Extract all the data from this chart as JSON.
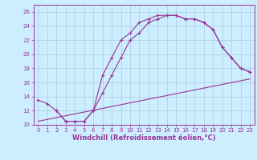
{
  "xlabel": "Windchill (Refroidissement éolien,°C)",
  "bg_color": "#cceeff",
  "line_color": "#993399",
  "ylim": [
    10,
    27
  ],
  "xlim": [
    -0.5,
    23.5
  ],
  "yticks": [
    10,
    12,
    14,
    16,
    18,
    20,
    22,
    24,
    26
  ],
  "xticks": [
    0,
    1,
    2,
    3,
    4,
    5,
    6,
    7,
    8,
    9,
    10,
    11,
    12,
    13,
    14,
    15,
    16,
    17,
    18,
    19,
    20,
    21,
    22,
    23
  ],
  "line1_x": [
    0,
    1,
    2,
    3,
    4,
    5,
    6,
    7,
    8,
    9,
    10,
    11,
    12,
    13,
    14,
    15,
    16,
    17,
    18,
    19,
    20,
    21,
    22,
    23
  ],
  "line1_y": [
    13.5,
    13.0,
    12.0,
    10.5,
    10.5,
    10.5,
    12.0,
    17.0,
    19.5,
    22.0,
    23.0,
    24.5,
    25.0,
    25.5,
    25.5,
    25.5,
    25.0,
    25.0,
    24.5,
    23.5,
    21.0,
    19.5,
    18.0,
    17.5
  ],
  "line2_x": [
    2,
    3,
    4,
    5,
    6,
    7,
    8,
    9,
    10,
    11,
    12,
    13,
    14,
    15,
    16,
    17,
    18,
    19,
    20,
    21,
    22,
    23
  ],
  "line2_y": [
    12.0,
    10.5,
    10.5,
    10.5,
    12.0,
    14.5,
    17.0,
    19.5,
    22.0,
    23.0,
    24.5,
    25.0,
    25.5,
    25.5,
    25.0,
    25.0,
    24.5,
    23.5,
    21.0,
    19.5,
    18.0,
    17.5
  ],
  "line3_x": [
    0,
    23
  ],
  "line3_y": [
    10.5,
    16.5
  ],
  "grid_color": "#aaccdd",
  "tick_fontsize": 5.0,
  "xlabel_fontsize": 6.0
}
